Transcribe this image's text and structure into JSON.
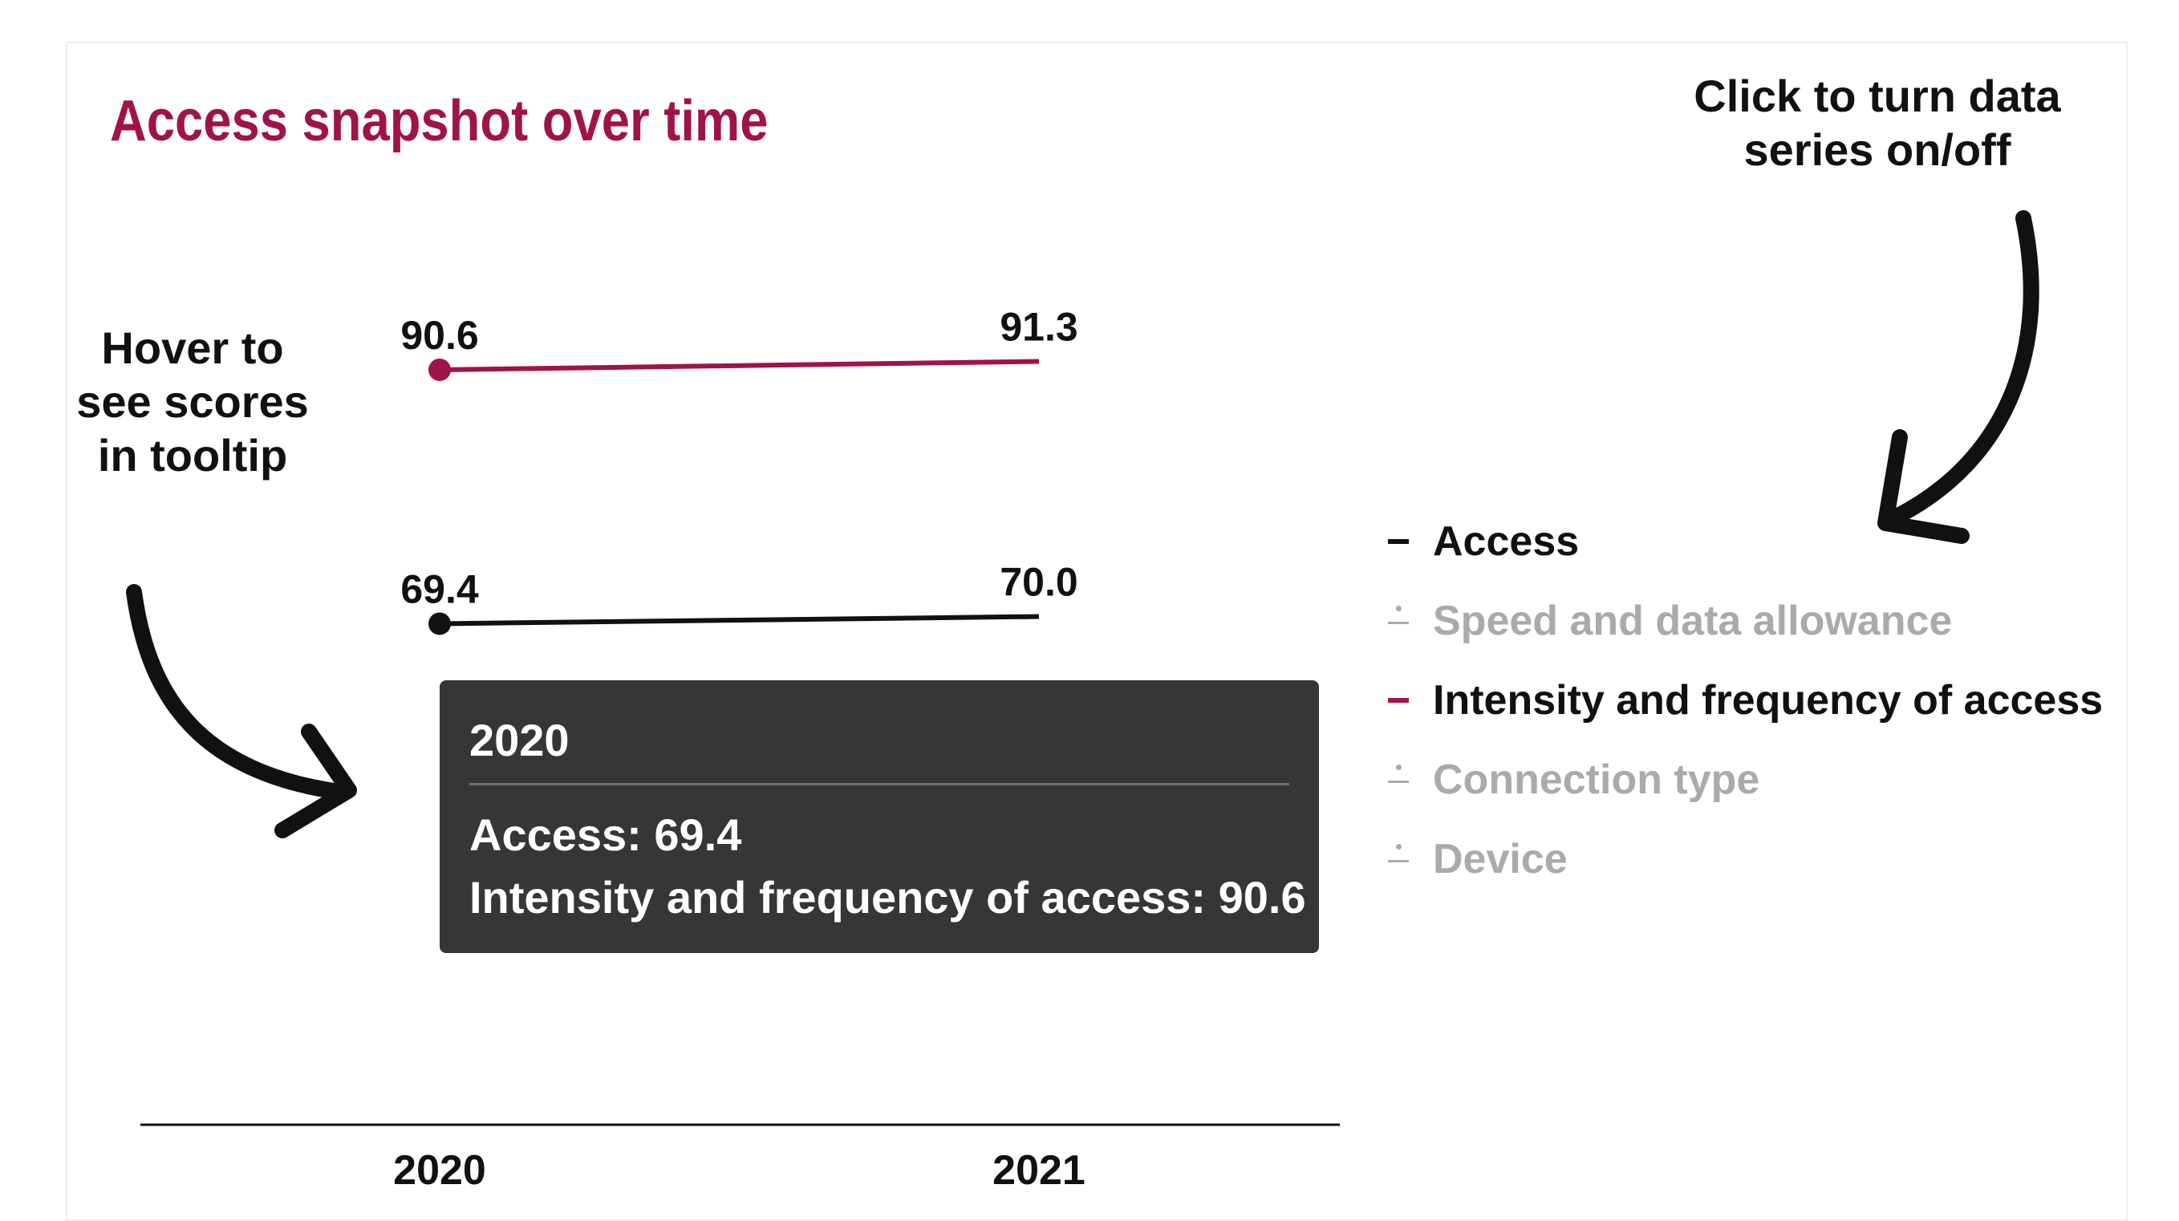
{
  "title": "Access snapshot over time",
  "annotations": {
    "hover": [
      "Hover to",
      "see scores",
      "in tooltip"
    ],
    "click": [
      "Click to turn data",
      "series on/off"
    ]
  },
  "tooltip": {
    "title": "2020",
    "rows": [
      "Access: 69.4",
      "Intensity and frequency of access: 90.6"
    ]
  },
  "legend": [
    {
      "label": "Access",
      "active": true,
      "color": "#111111"
    },
    {
      "label": "Speed and data allowance",
      "active": false,
      "color": "#aaaaaa"
    },
    {
      "label": "Intensity and frequency of access",
      "active": true,
      "color": "#a0134a"
    },
    {
      "label": "Connection type",
      "active": false,
      "color": "#aaaaaa"
    },
    {
      "label": "Device",
      "active": false,
      "color": "#aaaaaa"
    }
  ],
  "colors": {
    "title": "#a0134a",
    "tooltip_bg": "#363636",
    "inactive_legend": "#aaaaaa"
  },
  "chart_data": {
    "type": "line",
    "title": "Access snapshot over time",
    "categories": [
      "2020",
      "2021"
    ],
    "series": [
      {
        "name": "Access",
        "values": [
          69.4,
          70.0
        ],
        "labels": [
          "69.4",
          "70.0"
        ],
        "color": "#111111"
      },
      {
        "name": "Intensity and frequency of access",
        "values": [
          90.6,
          91.3
        ],
        "labels": [
          "90.6",
          "91.3"
        ],
        "color": "#a0134a"
      }
    ],
    "hidden_series": [
      "Speed and data allowance",
      "Connection type",
      "Device"
    ],
    "xlabel": "",
    "ylabel": "",
    "grid": false,
    "legend_position": "right"
  }
}
